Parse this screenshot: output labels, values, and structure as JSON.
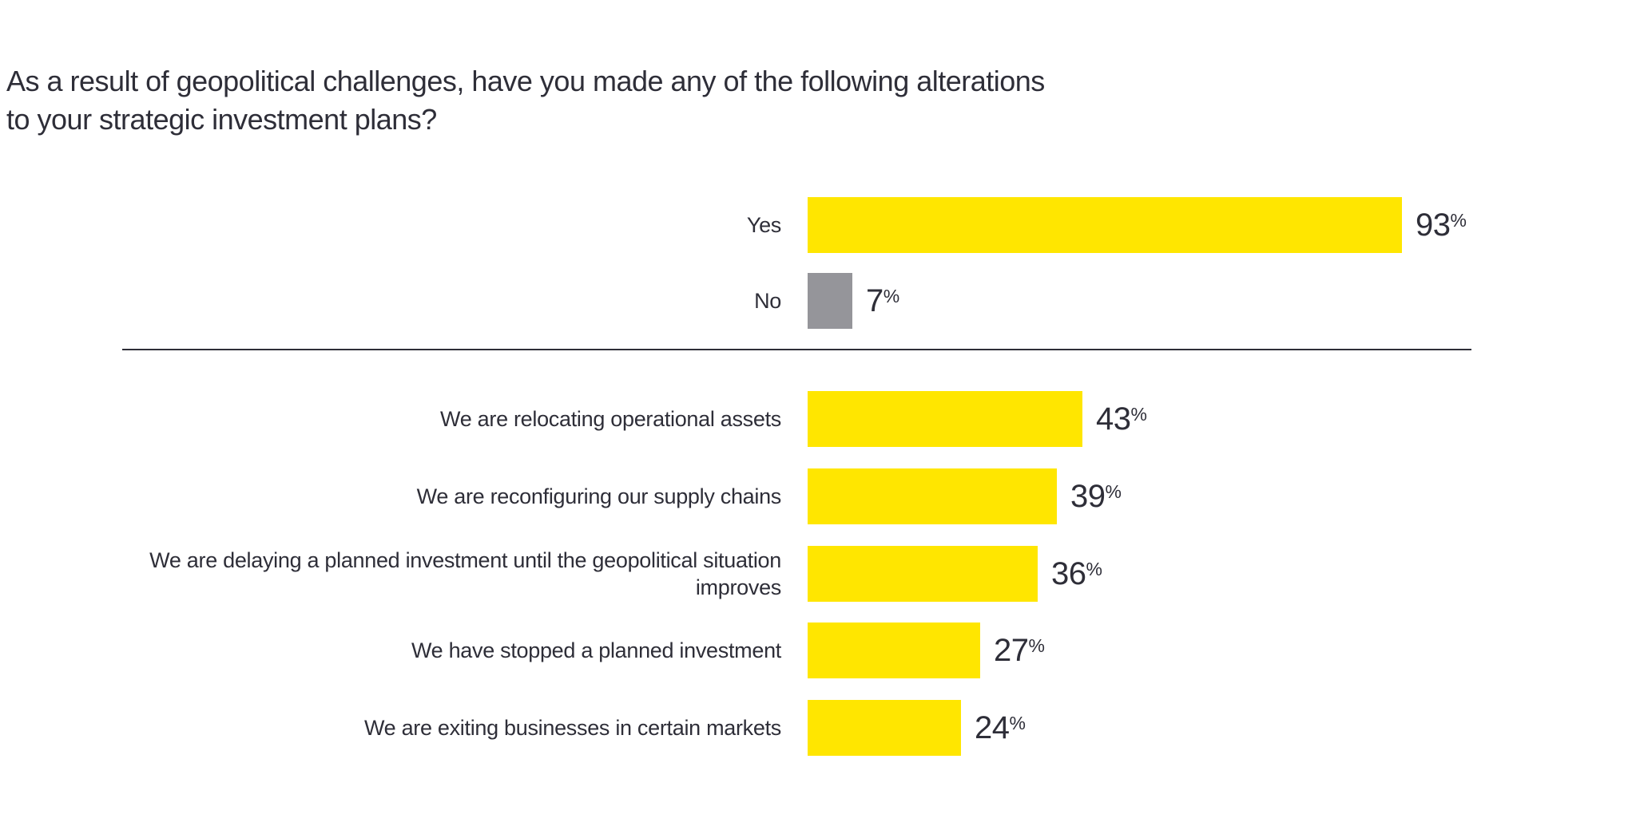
{
  "title": "As a result of geopolitical challenges, have you made any of the following alterations\nto your strategic investment plans?",
  "unit": "%",
  "colors": {
    "primary_yellow": "#FFE600",
    "neutral_gray": "#95959A",
    "text": "#2E2E38",
    "divider": "#2E2E38",
    "background": "#FFFFFF"
  },
  "chart_data": {
    "type": "bar",
    "orientation": "horizontal",
    "title": "As a result of geopolitical challenges, have you made any of the following alterations to your strategic investment plans?",
    "xlabel": "",
    "ylabel": "",
    "value_unit": "%",
    "xlim": [
      0,
      100
    ],
    "grid": false,
    "legend": false,
    "value_labels": "outside-end",
    "groups": [
      {
        "name": "overall-response",
        "categories": [
          "Yes",
          "No"
        ],
        "values": [
          93,
          7
        ],
        "bar_colors": [
          "#FFE600",
          "#95959A"
        ]
      },
      {
        "name": "alterations-made",
        "categories": [
          "We are relocating operational assets",
          "We are reconfiguring our supply chains",
          "We are delaying a planned investment until the geopolitical situation improves",
          "We have stopped a planned investment",
          "We are exiting businesses in certain markets"
        ],
        "values": [
          43,
          39,
          36,
          27,
          24
        ],
        "bar_colors": [
          "#FFE600",
          "#FFE600",
          "#FFE600",
          "#FFE600",
          "#FFE600"
        ]
      }
    ]
  }
}
